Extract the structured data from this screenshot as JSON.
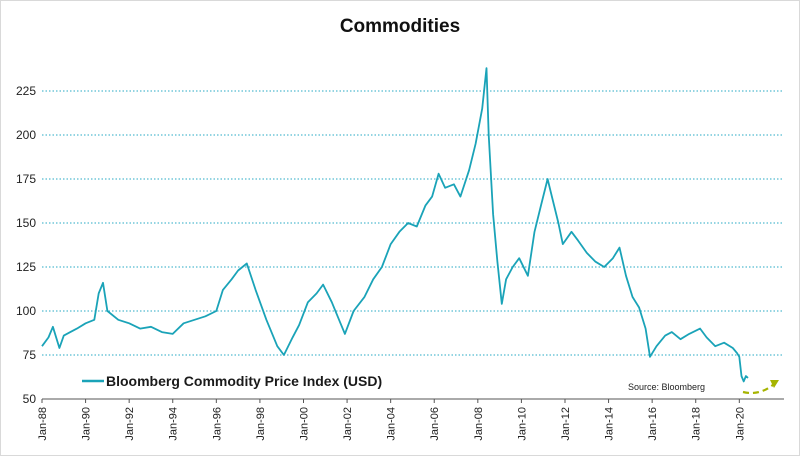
{
  "chart_data": {
    "type": "line",
    "title": "Commodities",
    "xlabel": "",
    "ylabel": "",
    "ylim": [
      50,
      240
    ],
    "yticks": [
      "50",
      "75",
      "100",
      "125",
      "150",
      "175",
      "200",
      "225"
    ],
    "xticks": [
      "Jan-88",
      "Jan-90",
      "Jan-92",
      "Jan-94",
      "Jan-96",
      "Jan-98",
      "Jan-00",
      "Jan-02",
      "Jan-04",
      "Jan-06",
      "Jan-08",
      "Jan-10",
      "Jan-12",
      "Jan-14",
      "Jan-16",
      "Jan-18",
      "Jan-20"
    ],
    "grid": "horizontal-dotted",
    "legend": "bottom-left",
    "source": "Source: Bloomberg",
    "colors": {
      "line": "#1aa3b8",
      "grid": "#27a9c4",
      "arrow": "#a6b400"
    },
    "series": [
      {
        "name": "Bloomberg Commodity Price Index (USD)",
        "x": [
          1988.0,
          1988.3,
          1988.5,
          1988.8,
          1989.0,
          1989.3,
          1989.6,
          1990.0,
          1990.4,
          1990.6,
          1990.8,
          1991.0,
          1991.5,
          1992.0,
          1992.5,
          1993.0,
          1993.5,
          1994.0,
          1994.5,
          1995.0,
          1995.5,
          1996.0,
          1996.3,
          1996.7,
          1997.0,
          1997.4,
          1997.8,
          1998.3,
          1998.8,
          1999.1,
          1999.5,
          1999.8,
          2000.2,
          2000.6,
          2000.9,
          2001.3,
          2001.7,
          2001.9,
          2002.3,
          2002.8,
          2003.2,
          2003.6,
          2004.0,
          2004.4,
          2004.8,
          2005.2,
          2005.6,
          2005.9,
          2006.2,
          2006.5,
          2006.9,
          2007.2,
          2007.6,
          2007.9,
          2008.2,
          2008.4,
          2008.5,
          2008.7,
          2008.9,
          2009.1,
          2009.3,
          2009.6,
          2009.9,
          2010.3,
          2010.6,
          2010.9,
          2011.2,
          2011.4,
          2011.7,
          2011.9,
          2012.3,
          2012.6,
          2013.0,
          2013.4,
          2013.8,
          2014.2,
          2014.5,
          2014.8,
          2015.1,
          2015.4,
          2015.7,
          2015.9,
          2016.2,
          2016.6,
          2016.9,
          2017.3,
          2017.7,
          2018.2,
          2018.5,
          2018.9,
          2019.3,
          2019.7,
          2019.9,
          2020.0,
          2020.1,
          2020.2,
          2020.3,
          2020.4
        ],
        "values": [
          80,
          85,
          91,
          79,
          86,
          88,
          90,
          93,
          95,
          110,
          116,
          100,
          95,
          93,
          90,
          91,
          88,
          87,
          93,
          95,
          97,
          100,
          112,
          118,
          123,
          127,
          112,
          95,
          80,
          75,
          85,
          92,
          105,
          110,
          115,
          105,
          93,
          87,
          100,
          108,
          118,
          125,
          138,
          145,
          150,
          148,
          160,
          165,
          178,
          170,
          172,
          165,
          180,
          195,
          215,
          238,
          200,
          155,
          128,
          104,
          118,
          125,
          130,
          120,
          145,
          160,
          175,
          165,
          150,
          138,
          145,
          140,
          133,
          128,
          125,
          130,
          136,
          120,
          108,
          102,
          90,
          74,
          80,
          86,
          88,
          84,
          87,
          90,
          85,
          80,
          82,
          79,
          76,
          74,
          63,
          60,
          63,
          62
        ]
      }
    ]
  }
}
